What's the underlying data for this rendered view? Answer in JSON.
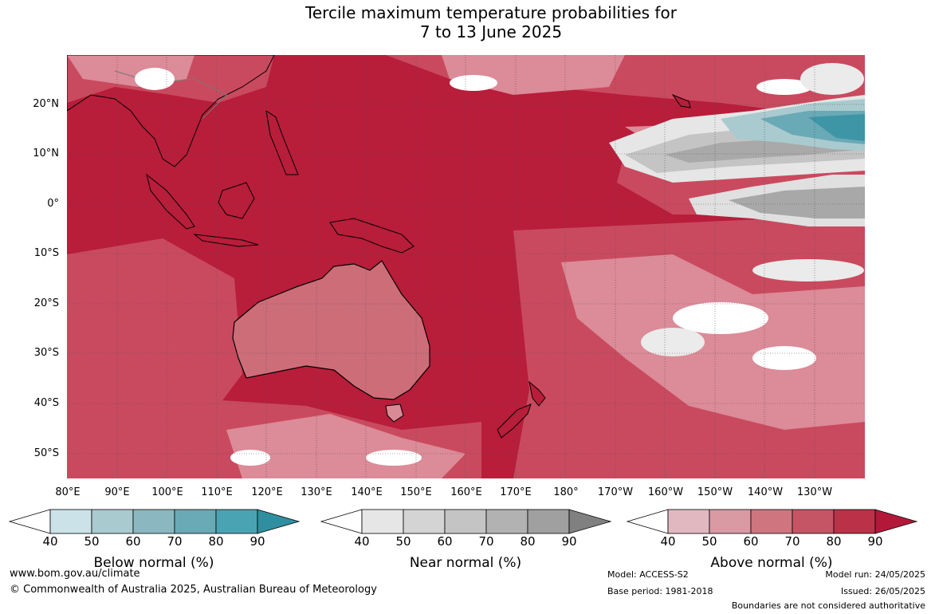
{
  "title": {
    "line1": "Tercile maximum temperature probabilities for",
    "line2": "7 to 13 June 2025"
  },
  "lat_labels": [
    "20°N",
    "10°N",
    "0°",
    "10°S",
    "20°S",
    "30°S",
    "40°S",
    "50°S"
  ],
  "lon_labels": [
    "80°E",
    "90°E",
    "100°E",
    "110°E",
    "120°E",
    "130°E",
    "140°E",
    "150°E",
    "160°E",
    "170°E",
    "180°",
    "170°W",
    "160°W",
    "150°W",
    "140°W",
    "130°W"
  ],
  "colorbars": [
    {
      "name": "Below normal (%)",
      "ticks": [
        "40",
        "50",
        "60",
        "70",
        "80",
        "90"
      ],
      "colors": [
        "#ffffff",
        "#cbe2e8",
        "#a9cacf",
        "#8bb8c0",
        "#6aa9b6",
        "#4aa3b3",
        "#2f8fa0"
      ]
    },
    {
      "name": "Near normal (%)",
      "ticks": [
        "40",
        "50",
        "60",
        "70",
        "80",
        "90"
      ],
      "colors": [
        "#ffffff",
        "#e6e6e6",
        "#d4d4d4",
        "#c4c4c4",
        "#b2b2b2",
        "#a0a0a0",
        "#808080"
      ]
    },
    {
      "name": "Above normal (%)",
      "ticks": [
        "40",
        "50",
        "60",
        "70",
        "80",
        "90"
      ],
      "colors": [
        "#ffffff",
        "#e2b8c0",
        "#d99aa3",
        "#cf7580",
        "#c55565",
        "#bb3248",
        "#b3183a"
      ]
    }
  ],
  "footer": {
    "website": "www.bom.gov.au/climate",
    "copyright": "© Commonwealth of Australia 2025, Australian Bureau of Meteorology",
    "model": "Model: ACCESS-S2",
    "base_period": "Base period: 1981-2018",
    "model_run": "Model run: 24/05/2025",
    "issued": "Issued: 26/05/2025",
    "boundaries": "Boundaries are not considered authoritative"
  }
}
